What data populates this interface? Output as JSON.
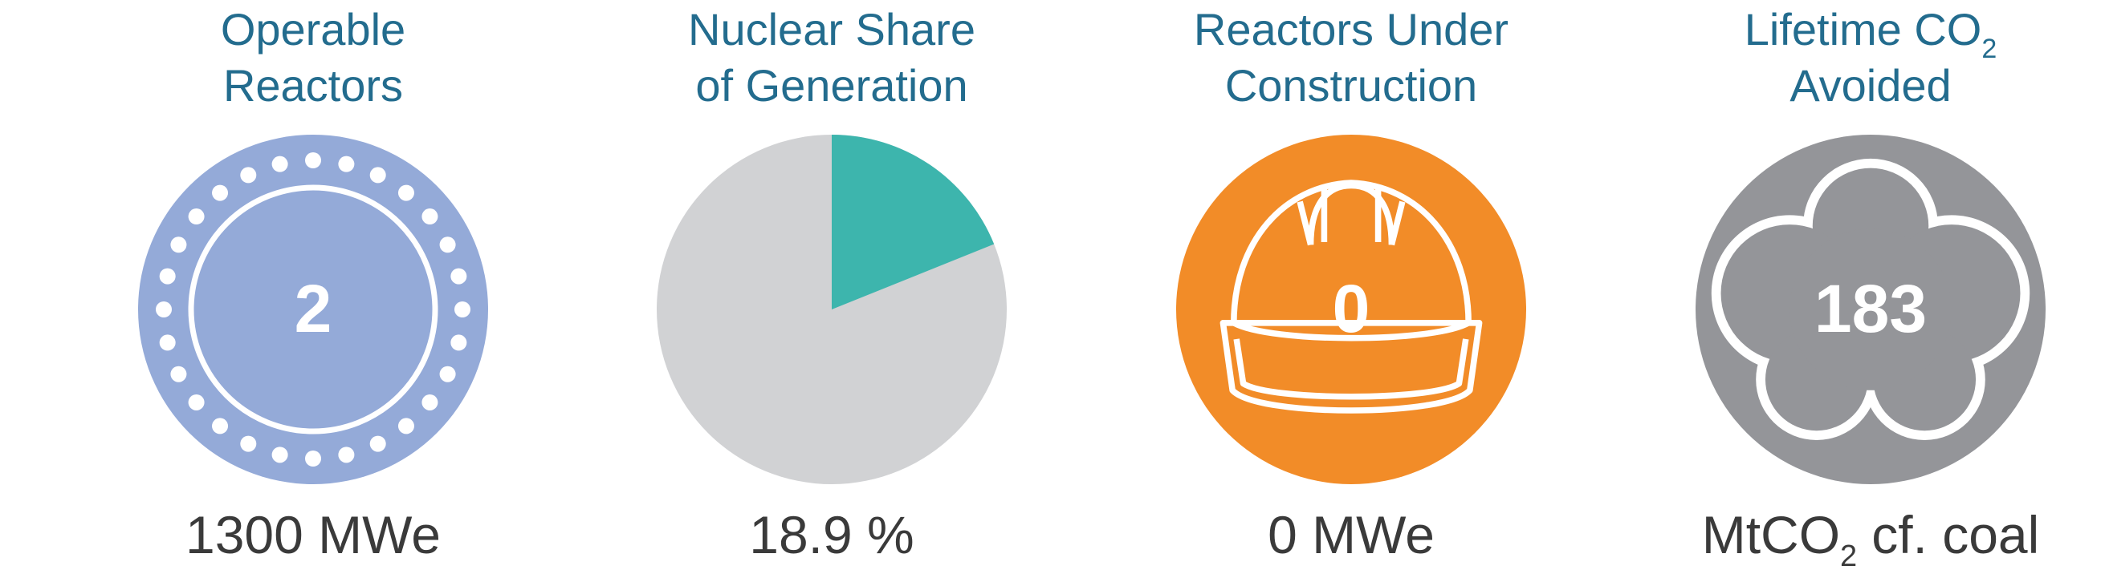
{
  "panels": [
    {
      "title": [
        "Operable",
        "Reactors"
      ],
      "value": 2,
      "caption": "1300 MWe"
    },
    {
      "title": [
        "Nuclear Share",
        "of Generation"
      ],
      "value": 18.9,
      "value_label": "18.9 %"
    },
    {
      "title": [
        "Reactors Under",
        "Construction"
      ],
      "value": 0,
      "caption": "0 MWe"
    },
    {
      "title": [
        "Lifetime CO",
        "Avoided"
      ],
      "title_sub": "2",
      "value": 183,
      "caption": [
        "MtCO",
        "2",
        "cf. coal"
      ]
    }
  ]
}
